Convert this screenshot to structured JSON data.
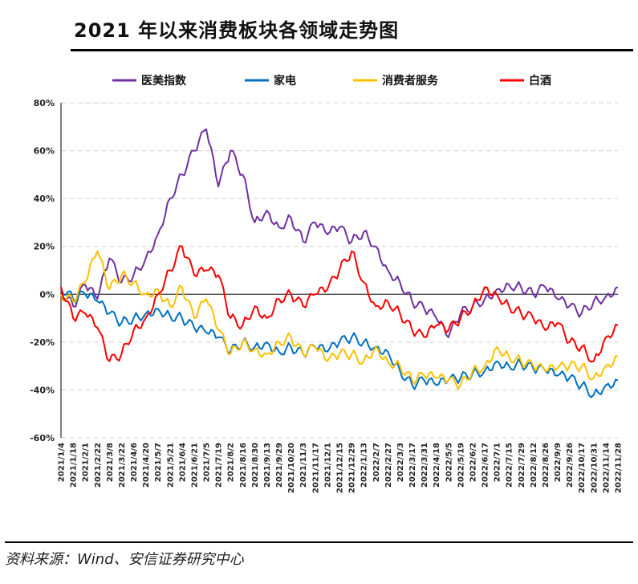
{
  "header": {
    "title": "2021 年以来消费板块各领域走势图"
  },
  "footer": {
    "source": "资料来源：Wind、安信证券研究中心"
  },
  "chart_data": {
    "type": "line",
    "title": "2021 年以来消费板块各领域走势图",
    "y_unit": "%",
    "ylim": [
      -60,
      80
    ],
    "yticks": [
      80,
      60,
      40,
      20,
      0,
      -20,
      -40,
      -60
    ],
    "ytick_labels": [
      "80%",
      "60%",
      "40%",
      "20%",
      "0%",
      "-20%",
      "-40%",
      "-60%"
    ],
    "grid": "horizontal dashed",
    "legend_position": "top",
    "categories": [
      "2021/1/4",
      "2021/1/18",
      "2021/2/1",
      "2021/2/22",
      "2021/3/8",
      "2021/3/22",
      "2021/4/6",
      "2021/4/20",
      "2021/5/7",
      "2021/5/21",
      "2021/6/4",
      "2021/6/21",
      "2021/7/5",
      "2021/7/19",
      "2021/8/2",
      "2021/8/16",
      "2021/8/30",
      "2021/9/13",
      "2021/9/29",
      "2021/10/20",
      "2021/11/3",
      "2021/11/17",
      "2021/12/1",
      "2021/12/15",
      "2021/12/29",
      "2022/1/13",
      "2022/2/7",
      "2022/2/27",
      "2022/3/3",
      "2022/3/17",
      "2022/3/31",
      "2022/4/18",
      "2022/5/5",
      "2022/5/19",
      "2022/6/2",
      "2022/6/17",
      "2022/7/1",
      "2022/7/15",
      "2022/7/29",
      "2022/8/12",
      "2022/8/26",
      "2022/9/9",
      "2022/9/26",
      "2022/10/17",
      "2022/10/31",
      "2022/11/14",
      "2022/11/28"
    ],
    "series": [
      {
        "name": "医美指数",
        "color": "#7030A0",
        "values": [
          2,
          -5,
          4,
          -2,
          15,
          5,
          8,
          15,
          25,
          40,
          50,
          60,
          69,
          45,
          60,
          50,
          30,
          35,
          28,
          32,
          22,
          30,
          25,
          28,
          22,
          26,
          20,
          10,
          5,
          -3,
          -6,
          -10,
          -18,
          -8,
          -5,
          -2,
          2,
          4,
          3,
          0,
          3,
          -2,
          -5,
          -8,
          -3,
          -1,
          3
        ]
      },
      {
        "name": "家电",
        "color": "#0070C0",
        "values": [
          3,
          -2,
          0,
          -3,
          -8,
          -12,
          -10,
          -8,
          -6,
          -9,
          -10,
          -14,
          -16,
          -18,
          -24,
          -20,
          -22,
          -20,
          -24,
          -22,
          -25,
          -22,
          -24,
          -20,
          -18,
          -20,
          -22,
          -24,
          -32,
          -38,
          -36,
          -38,
          -36,
          -35,
          -33,
          -32,
          -28,
          -30,
          -29,
          -31,
          -32,
          -34,
          -35,
          -38,
          -42,
          -38,
          -36
        ]
      },
      {
        "name": "消费者服务",
        "color": "#FFC000",
        "values": [
          0,
          -3,
          5,
          18,
          2,
          8,
          5,
          0,
          2,
          -5,
          3,
          -10,
          -2,
          -15,
          -25,
          -20,
          -23,
          -25,
          -20,
          -18,
          -25,
          -22,
          -28,
          -25,
          -25,
          -28,
          -22,
          -28,
          -30,
          -36,
          -34,
          -35,
          -36,
          -38,
          -32,
          -30,
          -22,
          -26,
          -28,
          -30,
          -32,
          -31,
          -30,
          -30,
          -35,
          -30,
          -26
        ]
      },
      {
        "name": "白酒",
        "color": "#FF0000",
        "values": [
          3,
          -10,
          -8,
          -14,
          -28,
          -25,
          -15,
          -10,
          0,
          10,
          20,
          8,
          10,
          8,
          -10,
          -13,
          -5,
          -10,
          -2,
          0,
          -5,
          0,
          2,
          10,
          18,
          5,
          -5,
          -3,
          -8,
          -15,
          -18,
          -13,
          -15,
          -10,
          -5,
          3,
          0,
          -5,
          -8,
          -10,
          -15,
          -12,
          -20,
          -22,
          -28,
          -18,
          -13
        ]
      }
    ]
  }
}
